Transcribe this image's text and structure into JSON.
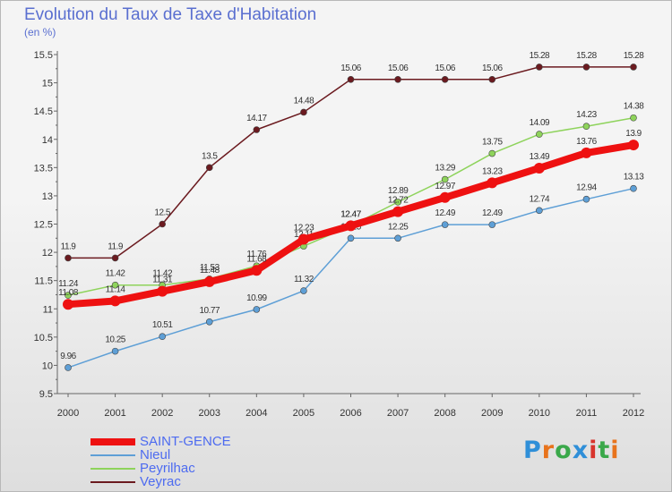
{
  "header": {
    "title": "Evolution du Taux de Taxe d'Habitation",
    "subtitle": "(en %)"
  },
  "logo": {
    "text": "Proxiti",
    "letter_colors": [
      "#2f8fd8",
      "#e8731c",
      "#3aa84a",
      "#2f8fd8",
      "#d8342c",
      "#3aa84a",
      "#e8731c"
    ]
  },
  "chart_data": {
    "type": "line",
    "x": [
      "2000",
      "2001",
      "2002",
      "2003",
      "2004",
      "2005",
      "2006",
      "2007",
      "2008",
      "2009",
      "2010",
      "2011",
      "2012"
    ],
    "ylim": [
      9.5,
      15.5
    ],
    "yticks": [
      "9.5",
      "10",
      "10.5",
      "11",
      "11.5",
      "12",
      "12.5",
      "13",
      "13.5",
      "14",
      "14.5",
      "15",
      "15.5"
    ],
    "grid": false,
    "legend_position": "bottom-left",
    "series": [
      {
        "name": "Veyrac",
        "color": "#6b1a1f",
        "values": [
          11.9,
          11.9,
          12.5,
          13.5,
          14.17,
          14.48,
          15.06,
          15.06,
          15.06,
          15.06,
          15.28,
          15.28,
          15.28
        ],
        "labels": [
          "11.9",
          "11.9",
          "12.5",
          "13.5",
          "14.17",
          "14.48",
          "15.06",
          "15.06",
          "15.06",
          "15.06",
          "15.28",
          "15.28",
          "15.28"
        ]
      },
      {
        "name": "Peyrilhac",
        "color": "#8ed35b",
        "values": [
          11.24,
          11.42,
          11.42,
          11.53,
          11.76,
          12.11,
          12.47,
          12.89,
          13.29,
          13.75,
          14.09,
          14.23,
          14.38
        ],
        "labels": [
          "11.24",
          "11.42",
          "11.42",
          "11.53",
          "11.76",
          "12.11",
          "12.47",
          "12.89",
          "13.29",
          "13.75",
          "14.09",
          "14.23",
          "14.38"
        ]
      },
      {
        "name": "Nieul",
        "color": "#5e9fd6",
        "values": [
          9.96,
          10.25,
          10.51,
          10.77,
          10.99,
          11.32,
          12.25,
          12.25,
          12.49,
          12.49,
          12.74,
          12.94,
          13.13
        ],
        "labels": [
          "9.96",
          "10.25",
          "10.51",
          "10.77",
          "10.99",
          "11.32",
          "12.25",
          "12.25",
          "12.49",
          "12.49",
          "12.74",
          "12.94",
          "13.13"
        ]
      },
      {
        "name": "SAINT-GENCE",
        "color": "#ee1111",
        "values": [
          11.08,
          11.14,
          11.31,
          11.48,
          11.68,
          12.23,
          12.47,
          12.72,
          12.97,
          13.23,
          13.49,
          13.76,
          13.9
        ],
        "labels": [
          "11.08",
          "11.14",
          "11.31",
          "11.48",
          "11.68",
          "12.23",
          "12.47",
          "12.72",
          "12.97",
          "13.23",
          "13.49",
          "13.76",
          "13.9"
        ]
      }
    ],
    "legend": [
      {
        "name": "SAINT-GENCE",
        "color": "#ee1111"
      },
      {
        "name": "Nieul",
        "color": "#5e9fd6"
      },
      {
        "name": "Peyrilhac",
        "color": "#8ed35b"
      },
      {
        "name": "Veyrac",
        "color": "#6b1a1f"
      }
    ]
  }
}
